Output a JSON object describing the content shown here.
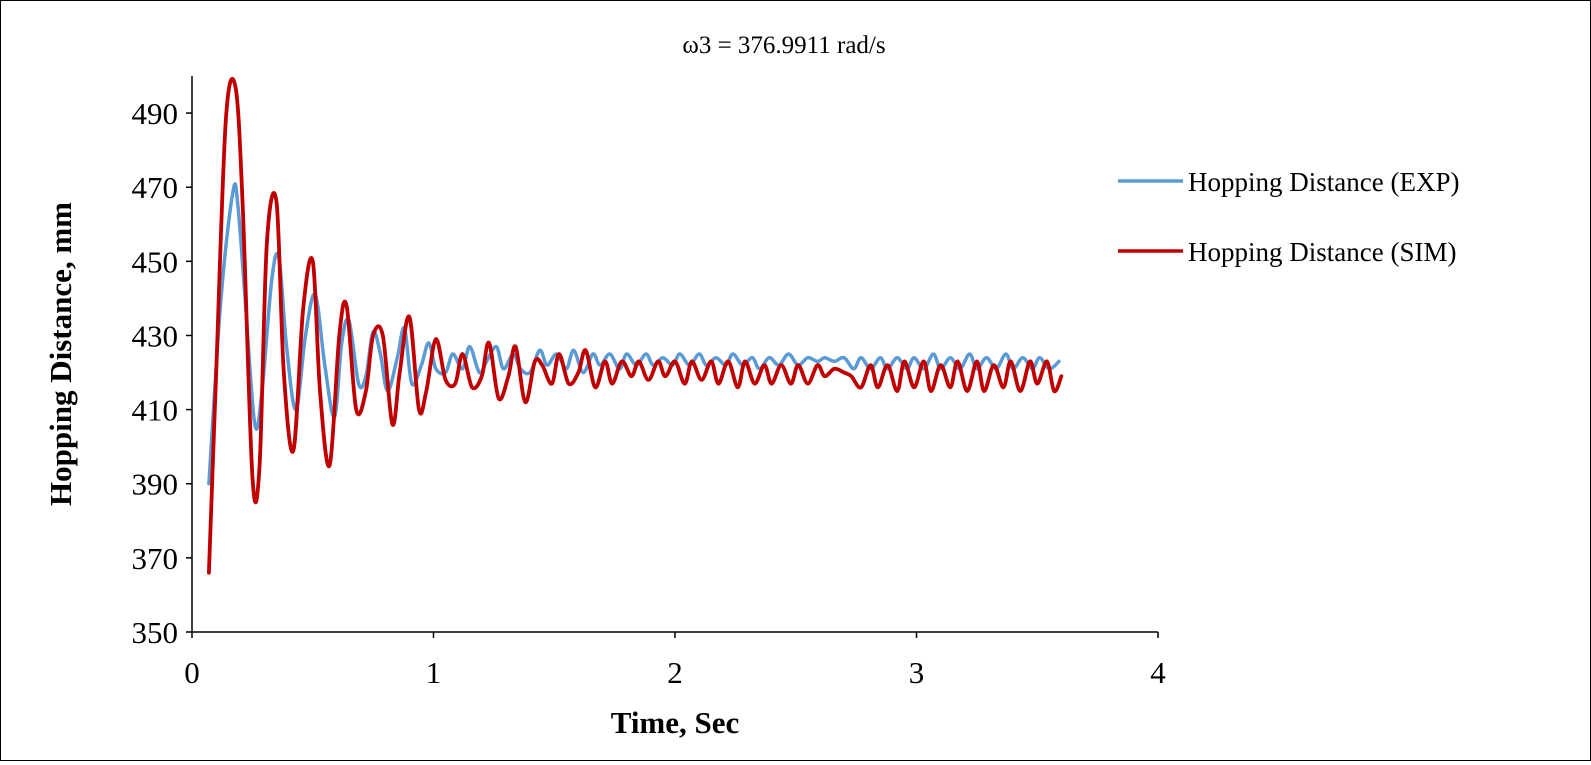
{
  "chart_data": {
    "type": "line",
    "title": "ω3 = 376.9911 rad/s",
    "xlabel": "Time, Sec",
    "ylabel": "Hopping Distance, mm",
    "xlim": [
      0,
      4
    ],
    "ylim": [
      350,
      500
    ],
    "xticks": [
      "0",
      "1",
      "2",
      "3",
      "4"
    ],
    "yticks": [
      "350",
      "370",
      "390",
      "410",
      "430",
      "450",
      "470",
      "490"
    ],
    "grid": false,
    "legend_position": "right",
    "series": [
      {
        "name": "Hopping Distance (EXP)",
        "color": "#5b9bd5",
        "x": [
          0.07,
          0.12,
          0.17,
          0.19,
          0.22,
          0.26,
          0.29,
          0.33,
          0.36,
          0.39,
          0.43,
          0.47,
          0.51,
          0.55,
          0.59,
          0.62,
          0.65,
          0.69,
          0.72,
          0.75,
          0.78,
          0.81,
          0.85,
          0.88,
          0.91,
          0.95,
          0.98,
          1.01,
          1.05,
          1.08,
          1.12,
          1.15,
          1.19,
          1.22,
          1.26,
          1.29,
          1.33,
          1.36,
          1.4,
          1.44,
          1.47,
          1.51,
          1.55,
          1.58,
          1.62,
          1.66,
          1.69,
          1.73,
          1.77,
          1.8,
          1.84,
          1.88,
          1.91,
          1.95,
          1.99,
          2.02,
          2.06,
          2.1,
          2.13,
          2.17,
          2.21,
          2.24,
          2.28,
          2.32,
          2.35,
          2.39,
          2.43,
          2.47,
          2.51,
          2.55,
          2.59,
          2.62,
          2.66,
          2.7,
          2.74,
          2.77,
          2.81,
          2.85,
          2.88,
          2.92,
          2.96,
          2.99,
          3.03,
          3.07,
          3.1,
          3.14,
          3.18,
          3.22,
          3.25,
          3.29,
          3.33,
          3.37,
          3.4,
          3.44,
          3.48,
          3.51,
          3.55,
          3.59
        ],
        "y": [
          390,
          440,
          469,
          465,
          440,
          406,
          415,
          445,
          451,
          428,
          410,
          430,
          441,
          422,
          408,
          428,
          434,
          417,
          419,
          431,
          425,
          415,
          424,
          432,
          417,
          422,
          428,
          421,
          420,
          425,
          421,
          427,
          420,
          423,
          427,
          421,
          425,
          421,
          420,
          426,
          422,
          425,
          421,
          426,
          420,
          425,
          422,
          425,
          421,
          425,
          422,
          425,
          422,
          424,
          422,
          425,
          422,
          425,
          422,
          424,
          422,
          425,
          422,
          424,
          421,
          424,
          422,
          425,
          422,
          424,
          423,
          424,
          423,
          424,
          421,
          424,
          421,
          424,
          421,
          424,
          421,
          424,
          421,
          425,
          421,
          424,
          421,
          425,
          421,
          424,
          421,
          425,
          421,
          424,
          421,
          424,
          421,
          423
        ]
      },
      {
        "name": "Hopping Distance (SIM)",
        "color": "#c00000",
        "x": [
          0.07,
          0.1,
          0.14,
          0.18,
          0.21,
          0.25,
          0.28,
          0.31,
          0.35,
          0.38,
          0.42,
          0.46,
          0.5,
          0.53,
          0.57,
          0.61,
          0.64,
          0.68,
          0.72,
          0.75,
          0.79,
          0.83,
          0.86,
          0.9,
          0.94,
          0.97,
          1.01,
          1.05,
          1.09,
          1.12,
          1.16,
          1.2,
          1.23,
          1.27,
          1.31,
          1.34,
          1.38,
          1.42,
          1.45,
          1.49,
          1.52,
          1.56,
          1.6,
          1.63,
          1.67,
          1.71,
          1.74,
          1.78,
          1.82,
          1.85,
          1.89,
          1.93,
          1.96,
          2.0,
          2.04,
          2.07,
          2.11,
          2.15,
          2.18,
          2.22,
          2.26,
          2.29,
          2.33,
          2.37,
          2.4,
          2.44,
          2.48,
          2.51,
          2.55,
          2.59,
          2.62,
          2.66,
          2.7,
          2.73,
          2.77,
          2.81,
          2.84,
          2.88,
          2.92,
          2.95,
          2.99,
          3.03,
          3.06,
          3.1,
          3.14,
          3.17,
          3.21,
          3.25,
          3.28,
          3.32,
          3.36,
          3.39,
          3.43,
          3.47,
          3.5,
          3.54,
          3.57,
          3.6
        ],
        "y": [
          366,
          420,
          488,
          497,
          465,
          392,
          395,
          455,
          466,
          420,
          399,
          437,
          450,
          415,
          395,
          430,
          438,
          410,
          415,
          430,
          430,
          406,
          420,
          435,
          410,
          415,
          429,
          418,
          417,
          425,
          416,
          419,
          428,
          413,
          419,
          427,
          412,
          423,
          422,
          417,
          425,
          417,
          420,
          426,
          416,
          423,
          417,
          423,
          419,
          423,
          418,
          423,
          419,
          423,
          417,
          423,
          418,
          423,
          417,
          423,
          416,
          423,
          417,
          422,
          417,
          422,
          417,
          422,
          417,
          422,
          419,
          421,
          420,
          419,
          416,
          422,
          416,
          422,
          415,
          423,
          416,
          423,
          415,
          422,
          416,
          423,
          415,
          423,
          415,
          422,
          416,
          423,
          415,
          423,
          417,
          423,
          415,
          419
        ]
      }
    ]
  }
}
